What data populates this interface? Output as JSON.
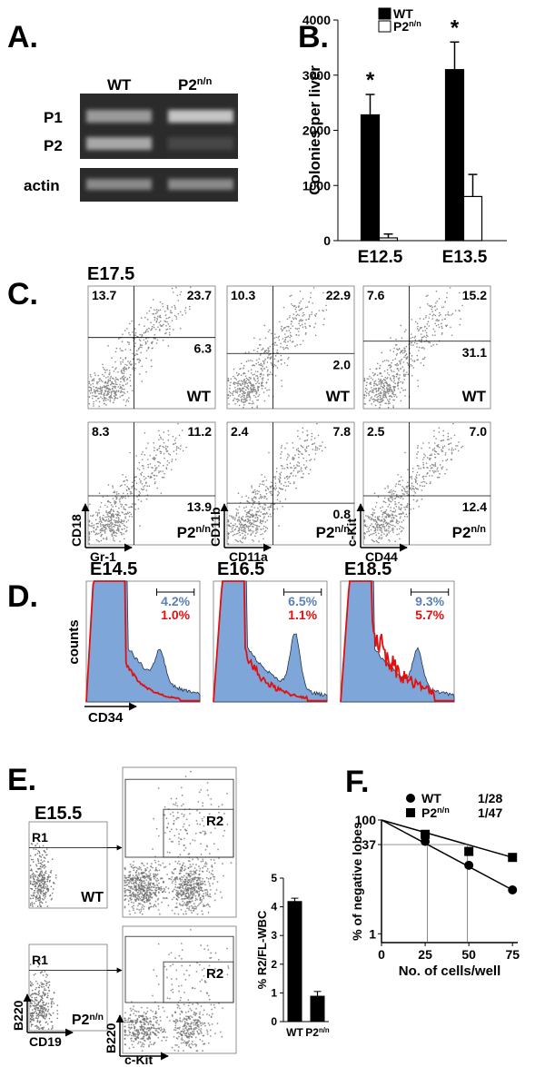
{
  "A": {
    "letter": "A.",
    "lanes": [
      "WT",
      "P2"
    ],
    "lane_sup": "n/n",
    "bands": [
      "P1",
      "P2",
      "actin"
    ]
  },
  "B": {
    "letter": "B.",
    "type": "bar",
    "ylabel": "Colonies per liver",
    "categories": [
      "E12.5",
      "E13.5"
    ],
    "ylim": [
      0,
      4000
    ],
    "yticks": [
      0,
      1000,
      2000,
      3000,
      4000
    ],
    "series": [
      {
        "name": "WT",
        "color": "#000000",
        "values": [
          2280,
          3100
        ],
        "errors": [
          370,
          500
        ]
      },
      {
        "name": "P2",
        "name_sup": "n/n",
        "color": "#ffffff",
        "values": [
          50,
          800
        ],
        "errors": [
          70,
          400
        ]
      }
    ],
    "annotations": [
      "*",
      "*"
    ]
  },
  "C": {
    "letter": "C.",
    "stage": "E17.5",
    "genotypes": [
      "WT",
      "P2"
    ],
    "genotype_sup": "n/n",
    "plots": [
      {
        "x_label": "Gr-1",
        "y_label": "CD18",
        "quadrants": [
          [
            "13.7",
            "23.7",
            "6.3"
          ],
          [
            "8.3",
            "11.2",
            "13.9"
          ]
        ]
      },
      {
        "x_label": "CD11a",
        "y_label": "CD11b",
        "quadrants": [
          [
            "10.3",
            "22.9",
            "2.0"
          ],
          [
            "2.4",
            "7.8",
            "0.8"
          ]
        ]
      },
      {
        "x_label": "CD44",
        "y_label": "c-Kit",
        "quadrants": [
          [
            "7.6",
            "15.2",
            "31.1"
          ],
          [
            "2.5",
            "7.0",
            "12.4"
          ]
        ]
      }
    ]
  },
  "D": {
    "letter": "D.",
    "y_label": "counts",
    "x_label": "CD34",
    "plots": [
      {
        "stage": "E14.5",
        "wt": "4.2%",
        "mutant": "1.0%"
      },
      {
        "stage": "E16.5",
        "wt": "6.5%",
        "mutant": "1.1%"
      },
      {
        "stage": "E18.5",
        "wt": "9.3%",
        "mutant": "5.7%"
      }
    ]
  },
  "E": {
    "letter": "E.",
    "stage": "E15.5",
    "gates": [
      "R1",
      "R2"
    ],
    "genotypes": [
      "WT",
      "P2"
    ],
    "genotype_sup": "n/n",
    "gate_axes": [
      "B220",
      "CD19"
    ],
    "sort_axes": [
      "B220",
      "c-Kit"
    ],
    "chart": {
      "type": "bar",
      "ylabel": "% R2/FL-WBC",
      "categories": [
        "WT",
        "P2"
      ],
      "values": [
        4.2,
        0.9
      ],
      "errors": [
        0.1,
        0.15
      ],
      "ylim": [
        0,
        5
      ],
      "yticks": [
        0,
        1,
        2,
        3,
        4,
        5
      ],
      "color": "#000000"
    }
  },
  "F": {
    "letter": "F.",
    "type": "line",
    "ylabel": "% of negative lobes",
    "xlabel": "No. of cells/well",
    "log_y": true,
    "xlim": [
      0,
      78
    ],
    "ylim": [
      0.7,
      100
    ],
    "xticks": [
      0,
      25,
      50,
      75
    ],
    "yticks": [
      1,
      37,
      100
    ],
    "x": [
      25,
      50,
      75
    ],
    "series": [
      {
        "name": "WT",
        "frequency": "1/28",
        "marker": "circle",
        "color": "#000000",
        "values": [
          42,
          16,
          5.9
        ]
      },
      {
        "name": "P2",
        "name_sup": "n/n",
        "frequency": "1/47",
        "marker": "square",
        "color": "#000000",
        "values": [
          56,
          28,
          22
        ]
      }
    ]
  }
}
